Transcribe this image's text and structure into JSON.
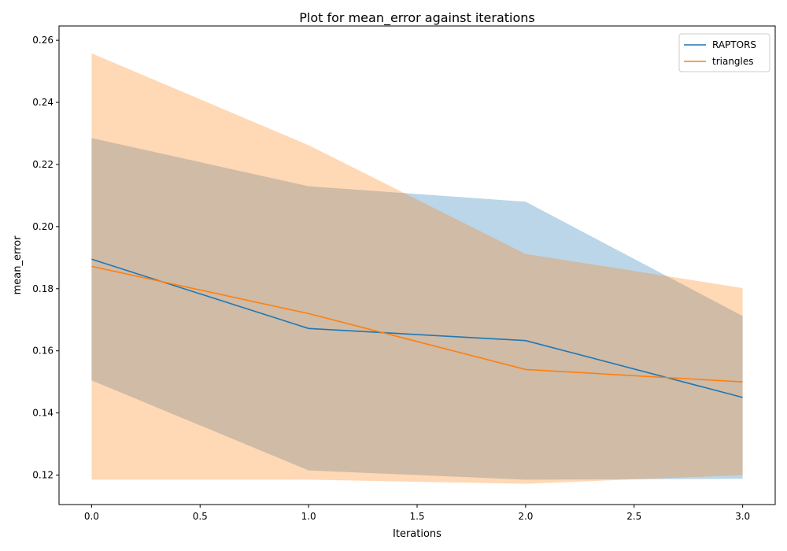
{
  "chart_data": {
    "type": "line",
    "title": "Plot for mean_error against iterations",
    "xlabel": "Iterations",
    "ylabel": "mean_error",
    "xlim": [
      -0.15,
      3.15
    ],
    "ylim": [
      0.1105,
      0.2646
    ],
    "xticks": [
      "0.0",
      "0.5",
      "1.0",
      "1.5",
      "2.0",
      "2.5",
      "3.0"
    ],
    "xtick_values": [
      0,
      0.5,
      1,
      1.5,
      2,
      2.5,
      3
    ],
    "yticks": [
      "0.12",
      "0.14",
      "0.16",
      "0.18",
      "0.20",
      "0.22",
      "0.24",
      "0.26"
    ],
    "ytick_values": [
      0.12,
      0.14,
      0.16,
      0.18,
      0.2,
      0.22,
      0.24,
      0.26
    ],
    "grid": false,
    "legend_position": "top-right",
    "x": [
      0,
      1,
      2,
      3
    ],
    "series": [
      {
        "name": "RAPTORS",
        "color": "#1f77b4",
        "band_color": "#1f77b4",
        "values": [
          0.1895,
          0.1672,
          0.1633,
          0.145
        ],
        "band_upper": [
          0.2285,
          0.213,
          0.208,
          0.1712
        ],
        "band_lower": [
          0.1505,
          0.1215,
          0.1185,
          0.1188
        ]
      },
      {
        "name": "triangles",
        "color": "#ff7f0e",
        "band_color": "#ff7f0e",
        "values": [
          0.1872,
          0.172,
          0.154,
          0.15
        ],
        "band_upper": [
          0.2558,
          0.2262,
          0.1912,
          0.1802
        ],
        "band_lower": [
          0.1185,
          0.1185,
          0.1172,
          0.12
        ]
      }
    ]
  }
}
